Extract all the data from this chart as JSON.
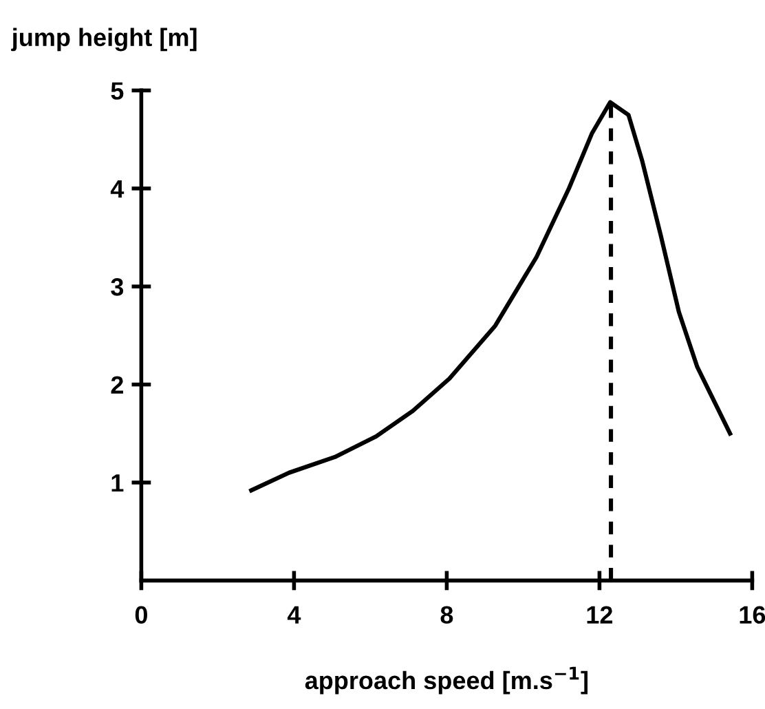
{
  "chart_data": {
    "type": "line",
    "xlabel": "approach speed [m.s$^{−1}$]",
    "ylabel": "jump height [m]",
    "series": [
      {
        "color": "#000000",
        "line_style": "solid",
        "x": [
          2.88,
          3.87,
          5.07,
          6.15,
          7.11,
          8.07,
          9.27,
          10.35,
          11.2,
          11.8,
          12.28,
          12.76,
          13.12,
          13.6,
          14.08,
          14.56,
          15.42
        ],
        "values": [
          0.92,
          1.1,
          1.26,
          1.47,
          1.73,
          2.06,
          2.6,
          3.3,
          4.0,
          4.56,
          4.88,
          4.75,
          4.28,
          3.53,
          2.74,
          2.18,
          1.5
        ]
      },
      {
        "color": "#000000",
        "line_style": "dashed",
        "x": [
          12.3,
          12.3
        ],
        "values": [
          0,
          4.88
        ]
      }
    ],
    "xlim": [
      0,
      16
    ],
    "ylim": [
      0,
      5
    ],
    "xticks": [
      0,
      4,
      8,
      12,
      16
    ],
    "yticks": [
      1,
      2,
      3,
      4,
      5
    ],
    "grid": false,
    "legend": false,
    "marker": "none"
  }
}
